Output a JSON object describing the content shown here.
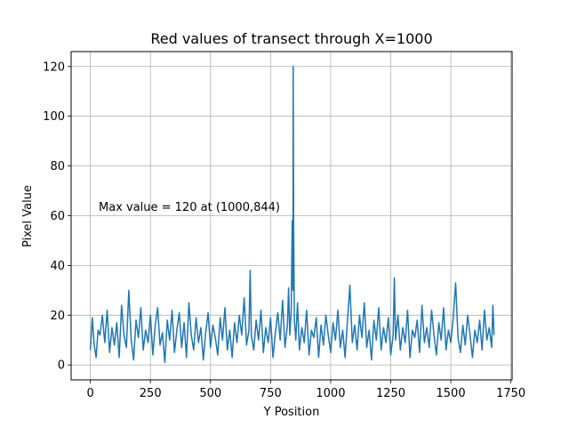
{
  "chart_data": {
    "type": "line",
    "title": "Red values of transect through X=1000",
    "xlabel": "Y Position",
    "ylabel": "Pixel Value",
    "xlim": [
      -80,
      1755
    ],
    "ylim": [
      -6,
      126
    ],
    "xticks": [
      0,
      250,
      500,
      750,
      1000,
      1250,
      1500,
      1750
    ],
    "yticks": [
      0,
      20,
      40,
      60,
      80,
      100,
      120
    ],
    "grid": true,
    "series_color": "#1f77b4",
    "annotation": {
      "text": "Max value = 120 at (1000,844)",
      "x": 30,
      "y": 62
    },
    "series": [
      {
        "points": [
          [
            0,
            6
          ],
          [
            8,
            19
          ],
          [
            16,
            8
          ],
          [
            24,
            3
          ],
          [
            32,
            14
          ],
          [
            40,
            12
          ],
          [
            50,
            20
          ],
          [
            60,
            9
          ],
          [
            70,
            22
          ],
          [
            80,
            5
          ],
          [
            90,
            15
          ],
          [
            100,
            8
          ],
          [
            110,
            17
          ],
          [
            120,
            3
          ],
          [
            130,
            24
          ],
          [
            140,
            12
          ],
          [
            150,
            7
          ],
          [
            160,
            30
          ],
          [
            170,
            10
          ],
          [
            180,
            2
          ],
          [
            190,
            18
          ],
          [
            200,
            11
          ],
          [
            210,
            23
          ],
          [
            220,
            6
          ],
          [
            230,
            14
          ],
          [
            240,
            9
          ],
          [
            250,
            20
          ],
          [
            260,
            4
          ],
          [
            270,
            16
          ],
          [
            280,
            23
          ],
          [
            290,
            8
          ],
          [
            300,
            13
          ],
          [
            310,
            1
          ],
          [
            320,
            18
          ],
          [
            330,
            10
          ],
          [
            340,
            22
          ],
          [
            350,
            5
          ],
          [
            360,
            14
          ],
          [
            370,
            21
          ],
          [
            380,
            7
          ],
          [
            390,
            17
          ],
          [
            400,
            3
          ],
          [
            410,
            25
          ],
          [
            420,
            12
          ],
          [
            430,
            6
          ],
          [
            440,
            19
          ],
          [
            450,
            9
          ],
          [
            460,
            15
          ],
          [
            470,
            2
          ],
          [
            480,
            13
          ],
          [
            490,
            21
          ],
          [
            500,
            7
          ],
          [
            510,
            16
          ],
          [
            520,
            11
          ],
          [
            530,
            4
          ],
          [
            540,
            19
          ],
          [
            550,
            10
          ],
          [
            560,
            23
          ],
          [
            570,
            6
          ],
          [
            580,
            14
          ],
          [
            590,
            3
          ],
          [
            600,
            17
          ],
          [
            610,
            9
          ],
          [
            620,
            20
          ],
          [
            630,
            12
          ],
          [
            640,
            27
          ],
          [
            650,
            8
          ],
          [
            660,
            14
          ],
          [
            665,
            38
          ],
          [
            670,
            12
          ],
          [
            680,
            6
          ],
          [
            690,
            18
          ],
          [
            700,
            10
          ],
          [
            710,
            22
          ],
          [
            720,
            5
          ],
          [
            730,
            15
          ],
          [
            740,
            9
          ],
          [
            750,
            19
          ],
          [
            760,
            3
          ],
          [
            770,
            13
          ],
          [
            780,
            21
          ],
          [
            790,
            10
          ],
          [
            800,
            26
          ],
          [
            810,
            7
          ],
          [
            820,
            16
          ],
          [
            825,
            31
          ],
          [
            830,
            12
          ],
          [
            836,
            22
          ],
          [
            840,
            58
          ],
          [
            843,
            30
          ],
          [
            844,
            120
          ],
          [
            846,
            55
          ],
          [
            849,
            18
          ],
          [
            855,
            10
          ],
          [
            862,
            25
          ],
          [
            870,
            6
          ],
          [
            880,
            15
          ],
          [
            890,
            9
          ],
          [
            900,
            22
          ],
          [
            910,
            4
          ],
          [
            920,
            14
          ],
          [
            930,
            11
          ],
          [
            940,
            19
          ],
          [
            950,
            3
          ],
          [
            960,
            16
          ],
          [
            970,
            8
          ],
          [
            980,
            20
          ],
          [
            990,
            12
          ],
          [
            1000,
            5
          ],
          [
            1010,
            17
          ],
          [
            1020,
            10
          ],
          [
            1030,
            22
          ],
          [
            1040,
            7
          ],
          [
            1050,
            14
          ],
          [
            1060,
            3
          ],
          [
            1070,
            18
          ],
          [
            1080,
            32
          ],
          [
            1090,
            9
          ],
          [
            1100,
            16
          ],
          [
            1110,
            6
          ],
          [
            1120,
            20
          ],
          [
            1130,
            11
          ],
          [
            1140,
            25
          ],
          [
            1150,
            7
          ],
          [
            1160,
            14
          ],
          [
            1170,
            2
          ],
          [
            1180,
            18
          ],
          [
            1190,
            10
          ],
          [
            1200,
            23
          ],
          [
            1210,
            6
          ],
          [
            1220,
            15
          ],
          [
            1230,
            9
          ],
          [
            1240,
            19
          ],
          [
            1250,
            4
          ],
          [
            1260,
            12
          ],
          [
            1265,
            35
          ],
          [
            1270,
            10
          ],
          [
            1280,
            20
          ],
          [
            1290,
            6
          ],
          [
            1300,
            15
          ],
          [
            1310,
            9
          ],
          [
            1320,
            22
          ],
          [
            1330,
            3
          ],
          [
            1340,
            14
          ],
          [
            1350,
            11
          ],
          [
            1360,
            18
          ],
          [
            1370,
            5
          ],
          [
            1380,
            24
          ],
          [
            1390,
            9
          ],
          [
            1400,
            15
          ],
          [
            1410,
            7
          ],
          [
            1420,
            22
          ],
          [
            1430,
            12
          ],
          [
            1440,
            4
          ],
          [
            1450,
            17
          ],
          [
            1460,
            10
          ],
          [
            1470,
            23
          ],
          [
            1480,
            6
          ],
          [
            1490,
            14
          ],
          [
            1500,
            9
          ],
          [
            1510,
            19
          ],
          [
            1520,
            33
          ],
          [
            1530,
            11
          ],
          [
            1540,
            5
          ],
          [
            1550,
            16
          ],
          [
            1560,
            8
          ],
          [
            1570,
            20
          ],
          [
            1580,
            12
          ],
          [
            1590,
            3
          ],
          [
            1600,
            14
          ],
          [
            1610,
            9
          ],
          [
            1620,
            18
          ],
          [
            1630,
            6
          ],
          [
            1640,
            22
          ],
          [
            1650,
            10
          ],
          [
            1660,
            15
          ],
          [
            1670,
            7
          ],
          [
            1675,
            24
          ],
          [
            1680,
            12
          ]
        ]
      }
    ]
  }
}
